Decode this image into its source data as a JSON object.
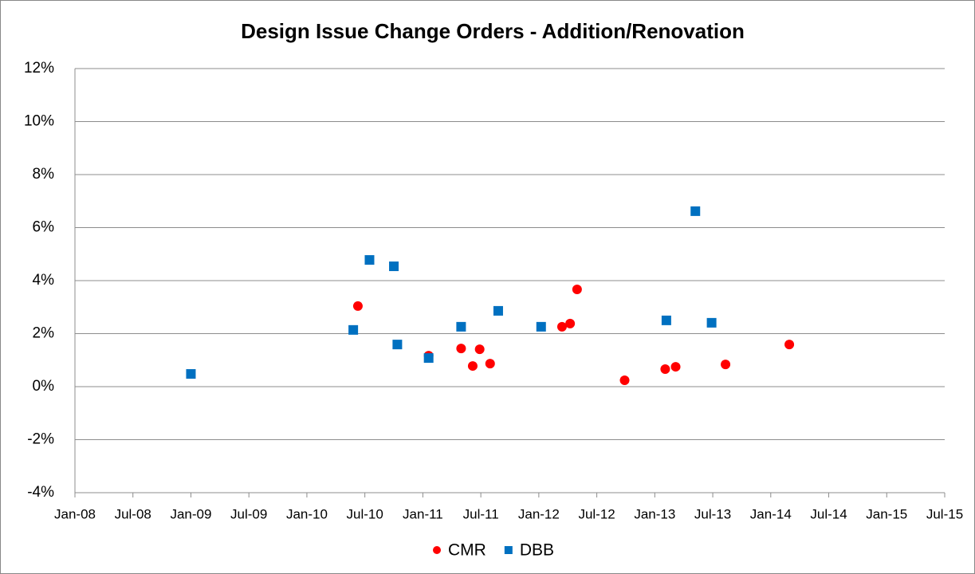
{
  "chart_data": {
    "type": "scatter",
    "title": "Design Issue Change Orders - Addition/Renovation",
    "series": [
      {
        "name": "CMR",
        "color": "#ff0000",
        "marker": "circle",
        "x": [
          2010.44,
          2011.05,
          2011.33,
          2011.43,
          2011.49,
          2011.58,
          2012.2,
          2012.27,
          2012.33,
          2012.74,
          2013.09,
          2013.18,
          2013.61,
          2014.16
        ],
        "values": [
          3.04,
          1.17,
          1.44,
          0.78,
          1.41,
          0.87,
          2.26,
          2.38,
          3.67,
          0.24,
          0.66,
          0.75,
          0.84,
          1.59
        ]
      },
      {
        "name": "DBB",
        "color": "#0070c0",
        "marker": "square",
        "x": [
          2009.0,
          2010.4,
          2010.54,
          2010.75,
          2010.78,
          2011.05,
          2011.33,
          2011.65,
          2012.02,
          2013.1,
          2013.35,
          2013.49
        ],
        "values": [
          0.48,
          2.14,
          4.78,
          4.54,
          1.59,
          1.08,
          2.26,
          2.86,
          2.26,
          2.5,
          6.62,
          2.41
        ]
      }
    ],
    "xlim": [
      2008,
      2015.5
    ],
    "xticks": [
      {
        "value": 2008,
        "label": "Jan-08"
      },
      {
        "value": 2008.5,
        "label": "Jul-08"
      },
      {
        "value": 2009,
        "label": "Jan-09"
      },
      {
        "value": 2009.5,
        "label": "Jul-09"
      },
      {
        "value": 2010,
        "label": "Jan-10"
      },
      {
        "value": 2010.5,
        "label": "Jul-10"
      },
      {
        "value": 2011,
        "label": "Jan-11"
      },
      {
        "value": 2011.5,
        "label": "Jul-11"
      },
      {
        "value": 2012,
        "label": "Jan-12"
      },
      {
        "value": 2012.5,
        "label": "Jul-12"
      },
      {
        "value": 2013,
        "label": "Jan-13"
      },
      {
        "value": 2013.5,
        "label": "Jul-13"
      },
      {
        "value": 2014,
        "label": "Jan-14"
      },
      {
        "value": 2014.5,
        "label": "Jul-14"
      },
      {
        "value": 2015,
        "label": "Jan-15"
      },
      {
        "value": 2015.5,
        "label": "Jul-15"
      }
    ],
    "ylim": [
      -4,
      12
    ],
    "yticks": [
      {
        "value": -4,
        "label": "-4%"
      },
      {
        "value": -2,
        "label": "-2%"
      },
      {
        "value": 0,
        "label": "0%"
      },
      {
        "value": 2,
        "label": "2%"
      },
      {
        "value": 4,
        "label": "4%"
      },
      {
        "value": 6,
        "label": "6%"
      },
      {
        "value": 8,
        "label": "8%"
      },
      {
        "value": 10,
        "label": "10%"
      },
      {
        "value": 12,
        "label": "12%"
      }
    ],
    "grid": true,
    "legend": "bottom"
  }
}
